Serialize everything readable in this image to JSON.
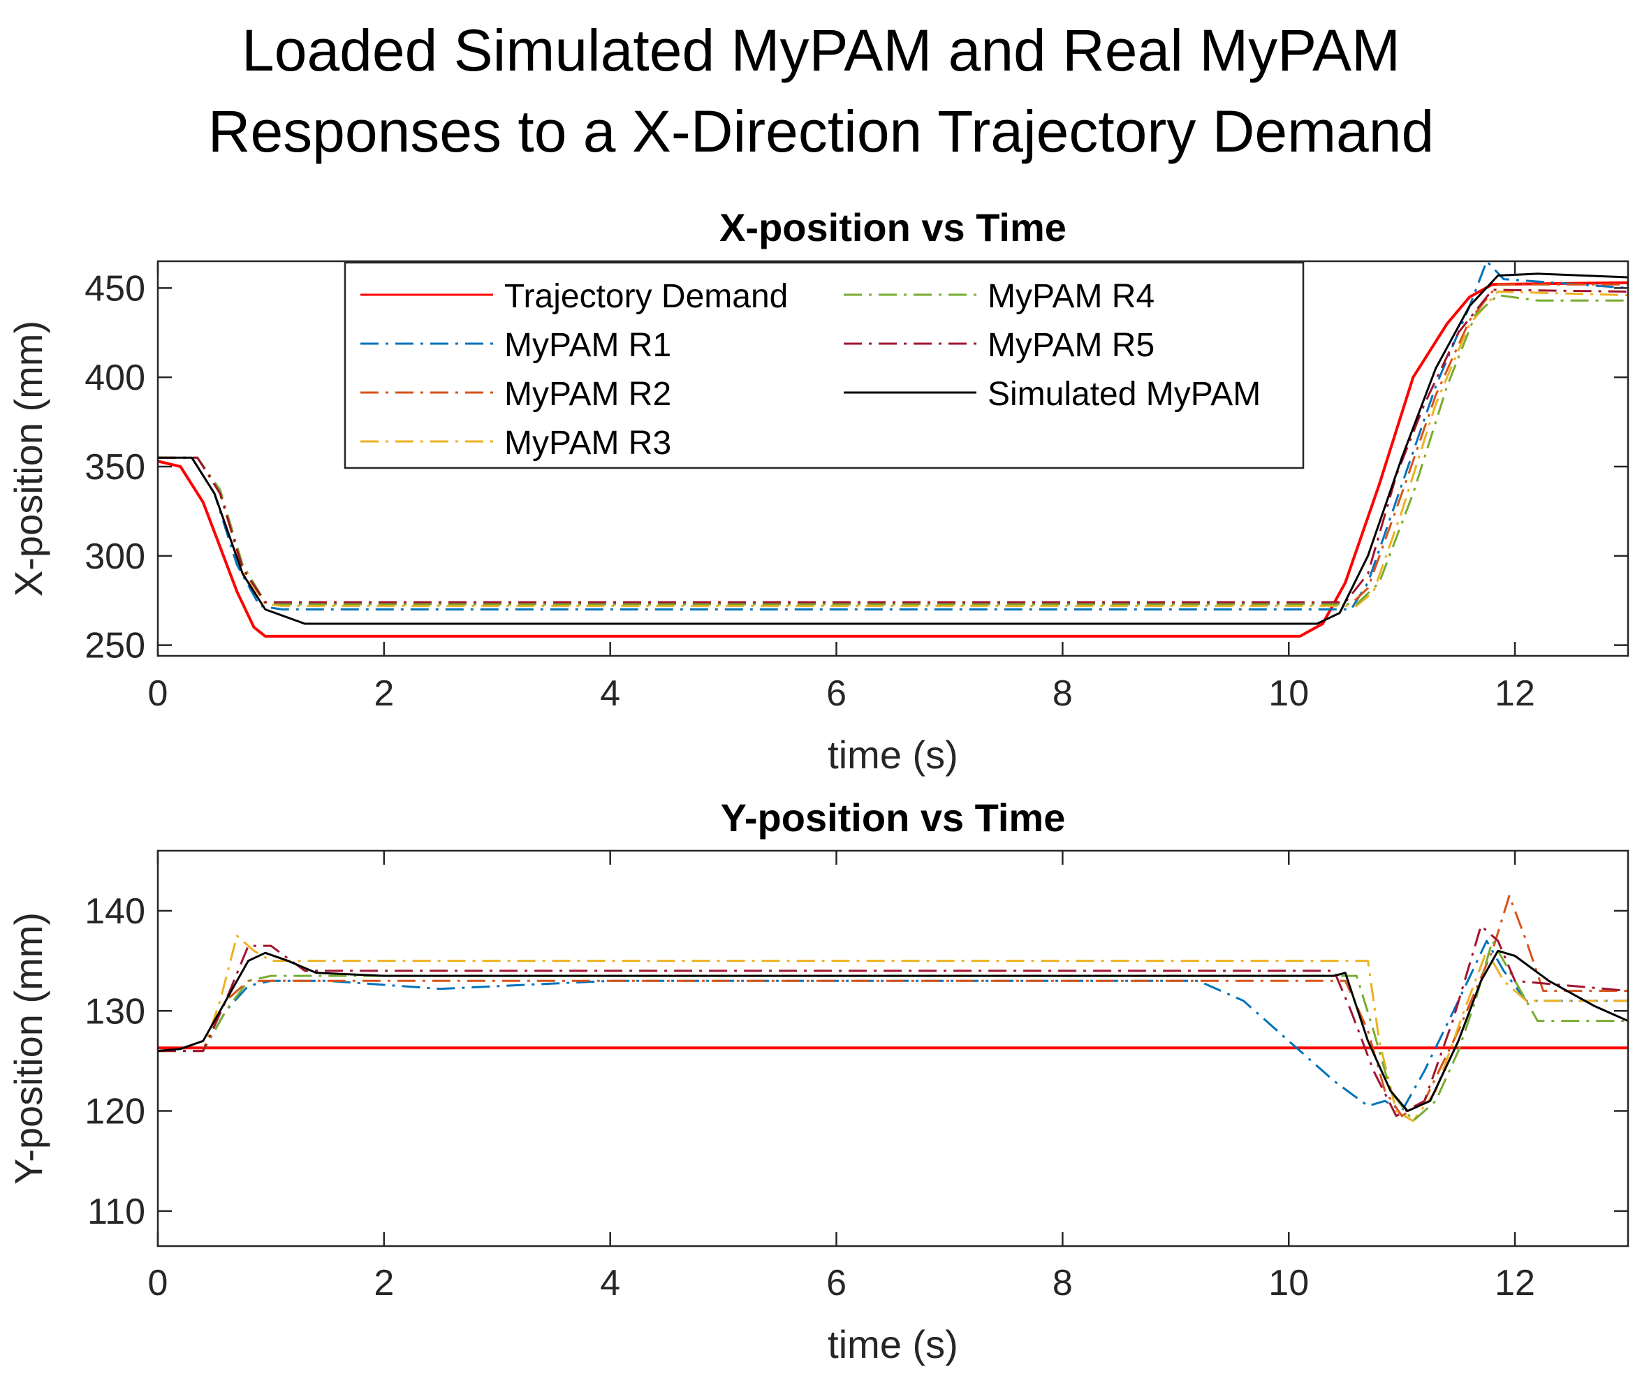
{
  "figure": {
    "title_line1": "Loaded Simulated MyPAM and Real MyPAM",
    "title_line2": "Responses to a X-Direction Trajectory Demand"
  },
  "legend": {
    "entries": [
      {
        "name": "Trajectory Demand",
        "color": "#ff0000",
        "style": "solid"
      },
      {
        "name": "MyPAM R1",
        "color": "#0072bd",
        "style": "dashdot"
      },
      {
        "name": "MyPAM R2",
        "color": "#d95319",
        "style": "dashdot"
      },
      {
        "name": "MyPAM R3",
        "color": "#edb120",
        "style": "dashdot"
      },
      {
        "name": "MyPAM R4",
        "color": "#77ac30",
        "style": "dashdot"
      },
      {
        "name": "MyPAM R5",
        "color": "#a2142f",
        "style": "dashdot"
      },
      {
        "name": "Simulated MyPAM",
        "color": "#000000",
        "style": "solid"
      }
    ]
  },
  "chart_data": [
    {
      "type": "line",
      "title": "X-position vs Time",
      "xlabel": "time (s)",
      "ylabel": "X-position (mm)",
      "xlim": [
        0,
        13
      ],
      "ylim": [
        244,
        465
      ],
      "xticks": [
        0,
        2,
        4,
        6,
        8,
        10,
        12
      ],
      "yticks": [
        250,
        300,
        350,
        400,
        450
      ],
      "grid": false,
      "legend_position": "top-center",
      "series": [
        {
          "name": "Trajectory Demand",
          "color": "#ff0000",
          "style": "solid",
          "points": [
            [
              0,
              353
            ],
            [
              0.2,
              350
            ],
            [
              0.4,
              330
            ],
            [
              0.55,
              305
            ],
            [
              0.7,
              280
            ],
            [
              0.85,
              260
            ],
            [
              0.95,
              255
            ],
            [
              10.1,
              255
            ],
            [
              10.3,
              262
            ],
            [
              10.5,
              285
            ],
            [
              10.8,
              340
            ],
            [
              11.1,
              400
            ],
            [
              11.4,
              430
            ],
            [
              11.6,
              445
            ],
            [
              11.8,
              452
            ],
            [
              13,
              453
            ]
          ]
        },
        {
          "name": "MyPAM R1",
          "color": "#0072bd",
          "style": "dashdot",
          "points": [
            [
              0,
              355
            ],
            [
              0.3,
              355
            ],
            [
              0.5,
              335
            ],
            [
              0.7,
              295
            ],
            [
              0.9,
              272
            ],
            [
              1.1,
              270
            ],
            [
              10.55,
              270
            ],
            [
              10.7,
              285
            ],
            [
              11.0,
              340
            ],
            [
              11.3,
              395
            ],
            [
              11.6,
              440
            ],
            [
              11.75,
              465
            ],
            [
              11.9,
              455
            ],
            [
              13,
              450
            ]
          ]
        },
        {
          "name": "MyPAM R2",
          "color": "#d95319",
          "style": "dashdot",
          "points": [
            [
              0,
              355
            ],
            [
              0.35,
              355
            ],
            [
              0.55,
              335
            ],
            [
              0.75,
              293
            ],
            [
              0.95,
              274
            ],
            [
              1.1,
              273
            ],
            [
              10.55,
              273
            ],
            [
              10.7,
              282
            ],
            [
              11.0,
              335
            ],
            [
              11.3,
              390
            ],
            [
              11.6,
              432
            ],
            [
              11.85,
              452
            ],
            [
              13,
              452
            ]
          ]
        },
        {
          "name": "MyPAM R3",
          "color": "#edb120",
          "style": "dashdot",
          "points": [
            [
              0,
              355
            ],
            [
              0.35,
              355
            ],
            [
              0.55,
              335
            ],
            [
              0.75,
              292
            ],
            [
              0.95,
              273
            ],
            [
              1.1,
              272
            ],
            [
              10.6,
              272
            ],
            [
              10.75,
              280
            ],
            [
              11.0,
              325
            ],
            [
              11.3,
              385
            ],
            [
              11.6,
              430
            ],
            [
              11.85,
              448
            ],
            [
              13,
              446
            ]
          ]
        },
        {
          "name": "MyPAM R4",
          "color": "#77ac30",
          "style": "dashdot",
          "points": [
            [
              0,
              355
            ],
            [
              0.35,
              355
            ],
            [
              0.55,
              337
            ],
            [
              0.75,
              295
            ],
            [
              0.95,
              274
            ],
            [
              1.1,
              273
            ],
            [
              10.6,
              273
            ],
            [
              10.8,
              285
            ],
            [
              11.1,
              335
            ],
            [
              11.4,
              395
            ],
            [
              11.65,
              435
            ],
            [
              11.85,
              446
            ],
            [
              12.2,
              443
            ],
            [
              13,
              443
            ]
          ]
        },
        {
          "name": "MyPAM R5",
          "color": "#a2142f",
          "style": "dashdot",
          "points": [
            [
              0,
              355
            ],
            [
              0.35,
              355
            ],
            [
              0.55,
              335
            ],
            [
              0.75,
              293
            ],
            [
              0.95,
              274
            ],
            [
              1.1,
              274
            ],
            [
              10.5,
              274
            ],
            [
              10.7,
              290
            ],
            [
              10.95,
              345
            ],
            [
              11.2,
              385
            ],
            [
              11.5,
              425
            ],
            [
              11.8,
              449
            ],
            [
              13,
              448
            ]
          ]
        },
        {
          "name": "Simulated MyPAM",
          "color": "#000000",
          "style": "solid",
          "points": [
            [
              0,
              355
            ],
            [
              0.3,
              355
            ],
            [
              0.5,
              335
            ],
            [
              0.75,
              290
            ],
            [
              0.95,
              270
            ],
            [
              1.3,
              262
            ],
            [
              10.25,
              262
            ],
            [
              10.45,
              268
            ],
            [
              10.7,
              300
            ],
            [
              11.0,
              355
            ],
            [
              11.3,
              405
            ],
            [
              11.6,
              440
            ],
            [
              11.85,
              457
            ],
            [
              12.2,
              458
            ],
            [
              13,
              456
            ]
          ]
        }
      ]
    },
    {
      "type": "line",
      "title": "Y-position vs Time",
      "xlabel": "time (s)",
      "ylabel": "Y-position (mm)",
      "xlim": [
        0,
        13
      ],
      "ylim": [
        106.5,
        146
      ],
      "xticks": [
        0,
        2,
        4,
        6,
        8,
        10,
        12
      ],
      "yticks": [
        110,
        120,
        130,
        140
      ],
      "grid": false,
      "series": [
        {
          "name": "Trajectory Demand",
          "color": "#ff0000",
          "style": "solid",
          "points": [
            [
              0,
              126.3
            ],
            [
              13,
              126.3
            ]
          ]
        },
        {
          "name": "MyPAM R1",
          "color": "#0072bd",
          "style": "dashdot",
          "points": [
            [
              0,
              126
            ],
            [
              0.4,
              126
            ],
            [
              0.6,
              130
            ],
            [
              0.8,
              132.5
            ],
            [
              1.0,
              133
            ],
            [
              1.5,
              133
            ],
            [
              2.5,
              132.2
            ],
            [
              4,
              133
            ],
            [
              6,
              133
            ],
            [
              9.2,
              133
            ],
            [
              9.6,
              131
            ],
            [
              10,
              127
            ],
            [
              10.4,
              123
            ],
            [
              10.7,
              120.5
            ],
            [
              10.85,
              121
            ],
            [
              11.0,
              120
            ],
            [
              11.2,
              124
            ],
            [
              11.5,
              131
            ],
            [
              11.75,
              137
            ],
            [
              11.9,
              134
            ],
            [
              12.1,
              131
            ],
            [
              13,
              131
            ]
          ]
        },
        {
          "name": "MyPAM R2",
          "color": "#d95319",
          "style": "dashdot",
          "points": [
            [
              0,
              126
            ],
            [
              0.4,
              126
            ],
            [
              0.6,
              131
            ],
            [
              0.8,
              133
            ],
            [
              1.2,
              133
            ],
            [
              10.5,
              133
            ],
            [
              10.7,
              128
            ],
            [
              10.85,
              122
            ],
            [
              11.0,
              119.5
            ],
            [
              11.2,
              121
            ],
            [
              11.5,
              128
            ],
            [
              11.8,
              136
            ],
            [
              11.95,
              141.5
            ],
            [
              12.1,
              137
            ],
            [
              12.25,
              132
            ],
            [
              13,
              132
            ]
          ]
        },
        {
          "name": "MyPAM R3",
          "color": "#edb120",
          "style": "dashdot",
          "points": [
            [
              0,
              126
            ],
            [
              0.4,
              126
            ],
            [
              0.55,
              131
            ],
            [
              0.7,
              137.5
            ],
            [
              0.85,
              136
            ],
            [
              1.0,
              135
            ],
            [
              10.7,
              135
            ],
            [
              10.8,
              127
            ],
            [
              10.95,
              120
            ],
            [
              11.1,
              119
            ],
            [
              11.3,
              122
            ],
            [
              11.55,
              130
            ],
            [
              11.75,
              136
            ],
            [
              11.9,
              133
            ],
            [
              12.1,
              131
            ],
            [
              13,
              131
            ]
          ]
        },
        {
          "name": "MyPAM R4",
          "color": "#77ac30",
          "style": "dashdot",
          "points": [
            [
              0,
              126
            ],
            [
              0.4,
              126
            ],
            [
              0.6,
              130
            ],
            [
              0.8,
              133
            ],
            [
              1.0,
              133.5
            ],
            [
              1.5,
              133.5
            ],
            [
              10.6,
              133.5
            ],
            [
              10.75,
              128
            ],
            [
              10.9,
              122
            ],
            [
              11.1,
              119
            ],
            [
              11.3,
              121
            ],
            [
              11.5,
              126
            ],
            [
              11.65,
              131
            ],
            [
              11.8,
              137
            ],
            [
              11.95,
              134
            ],
            [
              12.2,
              129
            ],
            [
              13,
              129
            ]
          ]
        },
        {
          "name": "MyPAM R5",
          "color": "#a2142f",
          "style": "dashdot",
          "points": [
            [
              0,
              126
            ],
            [
              0.4,
              126
            ],
            [
              0.6,
              131
            ],
            [
              0.8,
              136.5
            ],
            [
              1.0,
              136.5
            ],
            [
              1.3,
              134
            ],
            [
              10.4,
              134
            ],
            [
              10.55,
              130
            ],
            [
              10.75,
              124
            ],
            [
              10.95,
              119.5
            ],
            [
              11.2,
              121
            ],
            [
              11.45,
              129
            ],
            [
              11.7,
              138.5
            ],
            [
              11.85,
              137
            ],
            [
              12.0,
              133
            ],
            [
              13,
              132
            ]
          ]
        },
        {
          "name": "Simulated MyPAM",
          "color": "#000000",
          "style": "solid",
          "points": [
            [
              0,
              126
            ],
            [
              0.2,
              126.2
            ],
            [
              0.4,
              127
            ],
            [
              0.6,
              131
            ],
            [
              0.8,
              135
            ],
            [
              0.95,
              135.8
            ],
            [
              1.15,
              135
            ],
            [
              1.4,
              133.8
            ],
            [
              2,
              133.5
            ],
            [
              10.4,
              133.5
            ],
            [
              10.5,
              133.8
            ],
            [
              10.7,
              127
            ],
            [
              10.9,
              122
            ],
            [
              11.05,
              120
            ],
            [
              11.25,
              121
            ],
            [
              11.5,
              127
            ],
            [
              11.7,
              133
            ],
            [
              11.85,
              136
            ],
            [
              12.0,
              135.5
            ],
            [
              12.3,
              133
            ],
            [
              12.7,
              130.5
            ],
            [
              13,
              129
            ]
          ]
        }
      ]
    }
  ]
}
